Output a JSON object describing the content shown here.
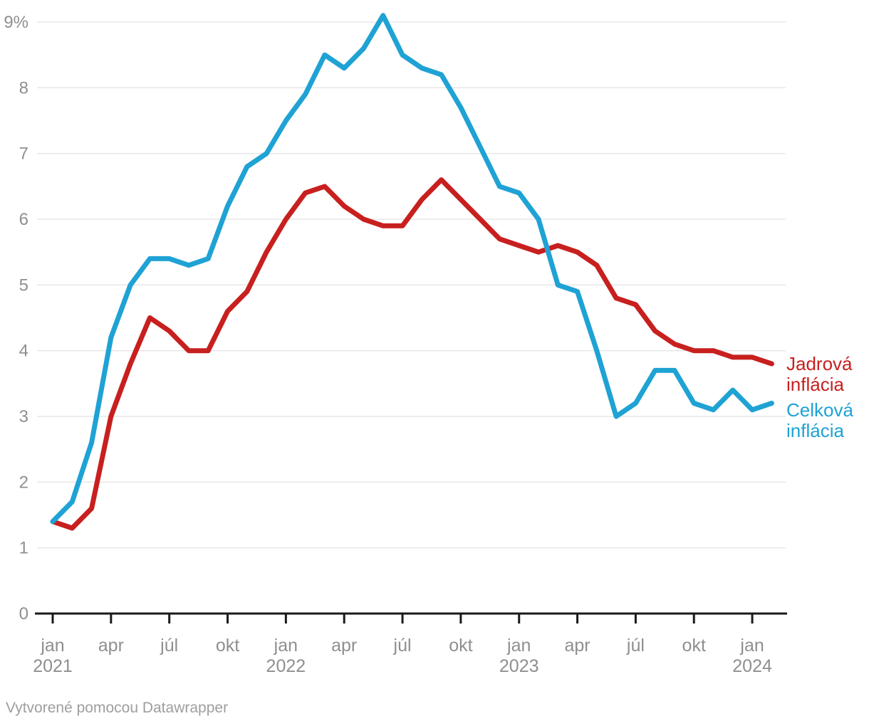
{
  "chart_data": {
    "type": "line",
    "title": "",
    "unit": "%",
    "x": [
      "2021-01",
      "2021-02",
      "2021-03",
      "2021-04",
      "2021-05",
      "2021-06",
      "2021-07",
      "2021-08",
      "2021-09",
      "2021-10",
      "2021-11",
      "2021-12",
      "2022-01",
      "2022-02",
      "2022-03",
      "2022-04",
      "2022-05",
      "2022-06",
      "2022-07",
      "2022-08",
      "2022-09",
      "2022-10",
      "2022-11",
      "2022-12",
      "2023-01",
      "2023-02",
      "2023-03",
      "2023-04",
      "2023-05",
      "2023-06",
      "2023-07",
      "2023-08",
      "2023-09",
      "2023-10",
      "2023-11",
      "2023-12",
      "2024-01",
      "2024-02"
    ],
    "series": [
      {
        "name": "Jadrová inflácia",
        "color": "#c7201f",
        "values": [
          1.4,
          1.3,
          1.6,
          3.0,
          3.8,
          4.5,
          4.3,
          4.0,
          4.0,
          4.6,
          4.9,
          5.5,
          6.0,
          6.4,
          6.5,
          6.2,
          6.0,
          5.9,
          5.9,
          6.3,
          6.6,
          6.3,
          6.0,
          5.7,
          5.6,
          5.5,
          5.6,
          5.5,
          5.3,
          4.8,
          4.7,
          4.3,
          4.1,
          4.0,
          4.0,
          3.9,
          3.9,
          3.8
        ]
      },
      {
        "name": "Celková inflácia",
        "color": "#1fa2d4",
        "values": [
          1.4,
          1.7,
          2.6,
          4.2,
          5.0,
          5.4,
          5.4,
          5.3,
          5.4,
          6.2,
          6.8,
          7.0,
          7.5,
          7.9,
          8.5,
          8.3,
          8.6,
          9.1,
          8.5,
          8.3,
          8.2,
          7.7,
          7.1,
          6.5,
          6.4,
          6.0,
          5.0,
          4.9,
          4.0,
          3.0,
          3.2,
          3.7,
          3.7,
          3.2,
          3.1,
          3.4,
          3.1,
          3.2
        ]
      }
    ],
    "ylim": [
      0,
      9
    ],
    "yticks": [
      {
        "value": 0,
        "label": "0"
      },
      {
        "value": 1,
        "label": "1"
      },
      {
        "value": 2,
        "label": "2"
      },
      {
        "value": 3,
        "label": "3"
      },
      {
        "value": 4,
        "label": "4"
      },
      {
        "value": 5,
        "label": "5"
      },
      {
        "value": 6,
        "label": "6"
      },
      {
        "value": 7,
        "label": "7"
      },
      {
        "value": 8,
        "label": "8"
      },
      {
        "value": 9,
        "label": "9%"
      }
    ],
    "xticks": [
      {
        "x": "2021-01",
        "label": "jan",
        "year": "2021"
      },
      {
        "x": "2021-04",
        "label": "apr"
      },
      {
        "x": "2021-07",
        "label": "júl"
      },
      {
        "x": "2021-10",
        "label": "okt"
      },
      {
        "x": "2022-01",
        "label": "jan",
        "year": "2022"
      },
      {
        "x": "2022-04",
        "label": "apr"
      },
      {
        "x": "2022-07",
        "label": "júl"
      },
      {
        "x": "2022-10",
        "label": "okt"
      },
      {
        "x": "2023-01",
        "label": "jan",
        "year": "2023"
      },
      {
        "x": "2023-04",
        "label": "apr"
      },
      {
        "x": "2023-07",
        "label": "júl"
      },
      {
        "x": "2023-10",
        "label": "okt"
      },
      {
        "x": "2024-01",
        "label": "jan",
        "year": "2024"
      }
    ],
    "grid": "horizontal",
    "legend_position": "right-of-line-ends"
  },
  "colors": {
    "core_line": "#c7201f",
    "headline_line": "#1fa2d4",
    "gridline": "#e5e5e5",
    "axis": "#1a1a1a",
    "tick_label": "#8f8f8f",
    "credit_text": "#9e9e9e"
  },
  "footer": {
    "credit": "Vytvorené pomocou Datawrapper"
  }
}
